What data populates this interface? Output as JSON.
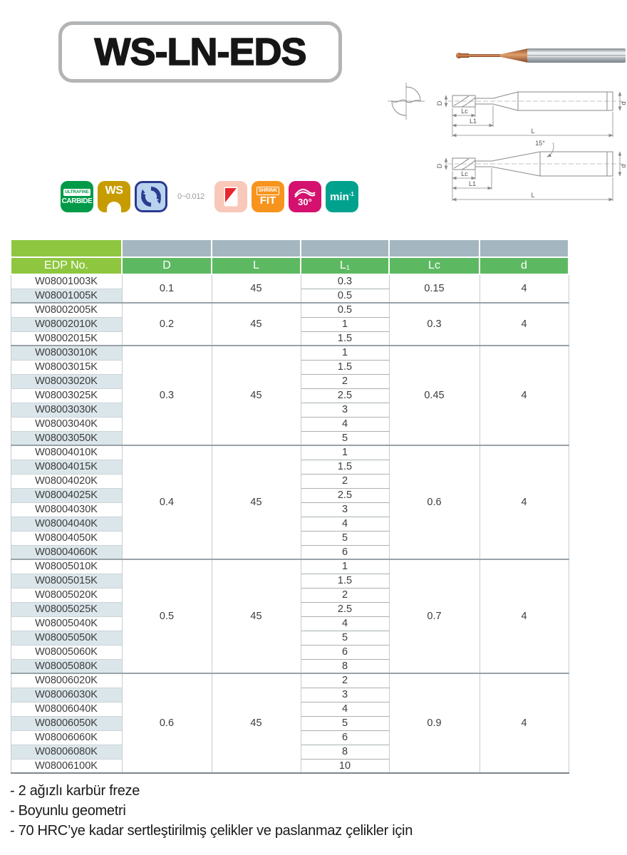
{
  "title": "WS-LN-EDS",
  "badges": {
    "carbide": {
      "top": "ULTRAFINE",
      "bottom": "CARBIDE"
    },
    "ws": {
      "label": "WS"
    },
    "tolerance": "0~0.012",
    "shrink_fit": {
      "top": "SHRINK",
      "bottom": "FIT"
    },
    "angle": {
      "label": "30°"
    },
    "min": {
      "label": "min",
      "sup": "-1"
    }
  },
  "drawings": {
    "labels": {
      "D": "D",
      "Lc": "Lc",
      "L1": "L1",
      "L": "L",
      "d": "d",
      "angle": "15°"
    }
  },
  "table": {
    "headers": {
      "edp": "EDP No.",
      "d": "D",
      "l": "L",
      "l1": "L₁",
      "lc": "Lc",
      "dia": "d"
    },
    "groups": [
      {
        "D": "0.1",
        "L": "45",
        "Lc": "0.15",
        "dia": "4",
        "rows": [
          {
            "edp": "W08001003K",
            "L1": "0.3"
          },
          {
            "edp": "W08001005K",
            "L1": "0.5"
          }
        ]
      },
      {
        "D": "0.2",
        "L": "45",
        "Lc": "0.3",
        "dia": "4",
        "rows": [
          {
            "edp": "W08002005K",
            "L1": "0.5"
          },
          {
            "edp": "W08002010K",
            "L1": "1"
          },
          {
            "edp": "W08002015K",
            "L1": "1.5"
          }
        ]
      },
      {
        "D": "0.3",
        "L": "45",
        "Lc": "0.45",
        "dia": "4",
        "rows": [
          {
            "edp": "W08003010K",
            "L1": "1"
          },
          {
            "edp": "W08003015K",
            "L1": "1.5"
          },
          {
            "edp": "W08003020K",
            "L1": "2"
          },
          {
            "edp": "W08003025K",
            "L1": "2.5"
          },
          {
            "edp": "W08003030K",
            "L1": "3"
          },
          {
            "edp": "W08003040K",
            "L1": "4"
          },
          {
            "edp": "W08003050K",
            "L1": "5"
          }
        ]
      },
      {
        "D": "0.4",
        "L": "45",
        "Lc": "0.6",
        "dia": "4",
        "rows": [
          {
            "edp": "W08004010K",
            "L1": "1"
          },
          {
            "edp": "W08004015K",
            "L1": "1.5"
          },
          {
            "edp": "W08004020K",
            "L1": "2"
          },
          {
            "edp": "W08004025K",
            "L1": "2.5"
          },
          {
            "edp": "W08004030K",
            "L1": "3"
          },
          {
            "edp": "W08004040K",
            "L1": "4"
          },
          {
            "edp": "W08004050K",
            "L1": "5"
          },
          {
            "edp": "W08004060K",
            "L1": "6"
          }
        ]
      },
      {
        "D": "0.5",
        "L": "45",
        "Lc": "0.7",
        "dia": "4",
        "rows": [
          {
            "edp": "W08005010K",
            "L1": "1"
          },
          {
            "edp": "W08005015K",
            "L1": "1.5"
          },
          {
            "edp": "W08005020K",
            "L1": "2"
          },
          {
            "edp": "W08005025K",
            "L1": "2.5"
          },
          {
            "edp": "W08005040K",
            "L1": "4"
          },
          {
            "edp": "W08005050K",
            "L1": "5"
          },
          {
            "edp": "W08005060K",
            "L1": "6"
          },
          {
            "edp": "W08005080K",
            "L1": "8"
          }
        ]
      },
      {
        "D": "0.6",
        "L": "45",
        "Lc": "0.9",
        "dia": "4",
        "rows": [
          {
            "edp": "W08006020K",
            "L1": "2"
          },
          {
            "edp": "W08006030K",
            "L1": "3"
          },
          {
            "edp": "W08006040K",
            "L1": "4"
          },
          {
            "edp": "W08006050K",
            "L1": "5"
          },
          {
            "edp": "W08006060K",
            "L1": "6"
          },
          {
            "edp": "W08006080K",
            "L1": "8"
          },
          {
            "edp": "W08006100K",
            "L1": "10"
          }
        ]
      }
    ]
  },
  "notes": [
    "- 2 ağızlı karbür freze",
    "- Boyunlu geometri",
    "- 70 HRC’ye kadar sertleştirilmiş çelikler ve paslanmaz çelikler için"
  ],
  "colors": {
    "lime_header": "#8ec73f",
    "gray_band": "#a4b7c1",
    "green_header": "#5db961",
    "row_shade": "#dbe6eb",
    "carbide_green": "#009a48",
    "ws_gold": "#c79c00",
    "rotation_blue": "#2c3a90",
    "insert_pink": "#f8c8ba",
    "shrink_orange": "#f6941d",
    "angle_magenta": "#d4116e",
    "min_teal": "#00a28e"
  }
}
